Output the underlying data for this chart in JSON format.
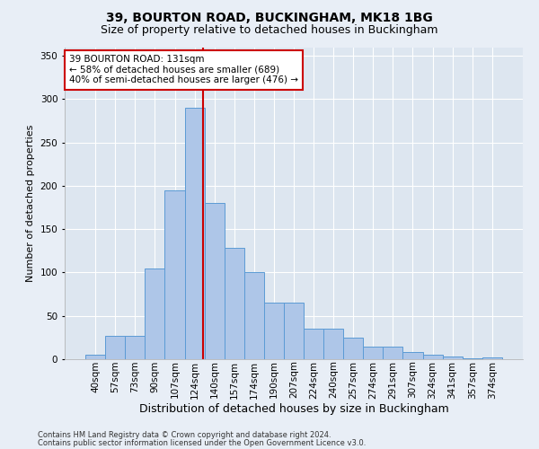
{
  "title1": "39, BOURTON ROAD, BUCKINGHAM, MK18 1BG",
  "title2": "Size of property relative to detached houses in Buckingham",
  "xlabel": "Distribution of detached houses by size in Buckingham",
  "ylabel": "Number of detached properties",
  "footnote1": "Contains HM Land Registry data © Crown copyright and database right 2024.",
  "footnote2": "Contains public sector information licensed under the Open Government Licence v3.0.",
  "bar_labels": [
    "40sqm",
    "57sqm",
    "73sqm",
    "90sqm",
    "107sqm",
    "124sqm",
    "140sqm",
    "157sqm",
    "174sqm",
    "190sqm",
    "207sqm",
    "224sqm",
    "240sqm",
    "257sqm",
    "274sqm",
    "291sqm",
    "307sqm",
    "324sqm",
    "341sqm",
    "357sqm",
    "374sqm"
  ],
  "bar_values": [
    5,
    27,
    27,
    105,
    195,
    290,
    180,
    128,
    100,
    65,
    65,
    35,
    35,
    25,
    15,
    15,
    8,
    5,
    3,
    1,
    2
  ],
  "bar_color": "#aec6e8",
  "bar_edge_color": "#5b9bd5",
  "vline_color": "#cc0000",
  "annotation_text": "39 BOURTON ROAD: 131sqm\n← 58% of detached houses are smaller (689)\n40% of semi-detached houses are larger (476) →",
  "annotation_box_color": "#ffffff",
  "annotation_box_edge": "#cc0000",
  "ylim": [
    0,
    360
  ],
  "yticks": [
    0,
    50,
    100,
    150,
    200,
    250,
    300,
    350
  ],
  "bg_color": "#e8eef6",
  "plot_bg_color": "#dde6f0",
  "grid_color": "#ffffff",
  "title1_fontsize": 10,
  "title2_fontsize": 9,
  "annot_fontsize": 7.5,
  "xlabel_fontsize": 9,
  "ylabel_fontsize": 8,
  "tick_fontsize": 7.5,
  "footnote_fontsize": 6.0,
  "vline_pos": 5.4375
}
